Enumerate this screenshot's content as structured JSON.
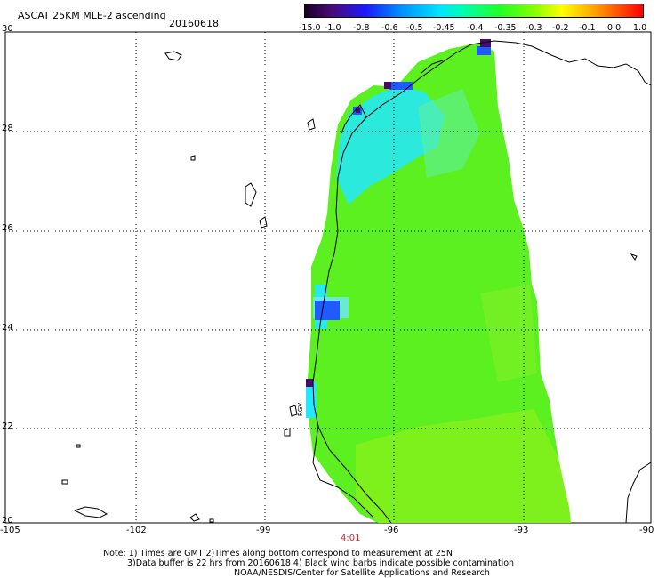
{
  "header": {
    "title": "ASCAT 25KM MLE-2 ascending",
    "date": "20160618"
  },
  "colorbar": {
    "labels": [
      "-15.0",
      "-1.0",
      "-0.8",
      "-0.6",
      "-0.5",
      "-0.45",
      "-0.4",
      "-0.35",
      "-0.3",
      "-0.2",
      "-0.1",
      "0.0",
      "1.0"
    ]
  },
  "axes": {
    "y_ticks": [
      "30",
      "28",
      "26",
      "24",
      "22",
      "20"
    ],
    "x_ticks": [
      "-105",
      "-102",
      "-99",
      "-96",
      "-93",
      "-90"
    ],
    "time_label": "4:01"
  },
  "notes": {
    "line1": "Note: 1) Times are GMT 2)Times along bottom correspond to measurement at 25N",
    "line2": "3)Data buffer is 22 hrs from 20160618 4) Black wind barbs indicate possible contamination",
    "line3": "NOAA/NESDIS/Center for Satellite Applications and Research"
  },
  "map": {
    "swath_color": "#5cf020",
    "accent_cyan": "#22e8ff",
    "accent_blue": "#1e5cff",
    "accent_purple": "#4b0a6a",
    "coastline_color": "#000000",
    "grid": true,
    "coast_label": "RGV"
  }
}
